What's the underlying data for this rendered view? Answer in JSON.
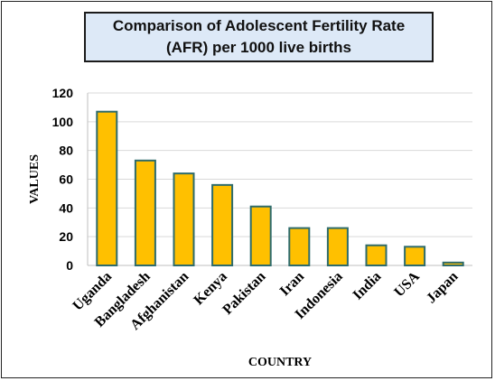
{
  "chart_data": {
    "type": "bar",
    "title": "Comparison of Adolescent Fertility Rate\n(AFR) per 1000 live births",
    "xlabel": "COUNTRY",
    "ylabel": "VALUES",
    "categories": [
      "Uganda",
      "Bangladesh",
      "Afghanistan",
      "Kenya",
      "Pakistan",
      "Iran",
      "Indonesia",
      "India",
      "USA",
      "Japan"
    ],
    "values": [
      107,
      73,
      64,
      56,
      41,
      26,
      26,
      14,
      13,
      2
    ],
    "ylim": [
      0,
      120
    ],
    "yticks": [
      0,
      20,
      40,
      60,
      80,
      100,
      120
    ],
    "grid": true,
    "legend": "none",
    "colors": {
      "bar_fill": "#FFC000",
      "bar_stroke": "#2E6B6B",
      "grid": "#D9D9D9",
      "title_bg": "#DDE9F7"
    }
  }
}
